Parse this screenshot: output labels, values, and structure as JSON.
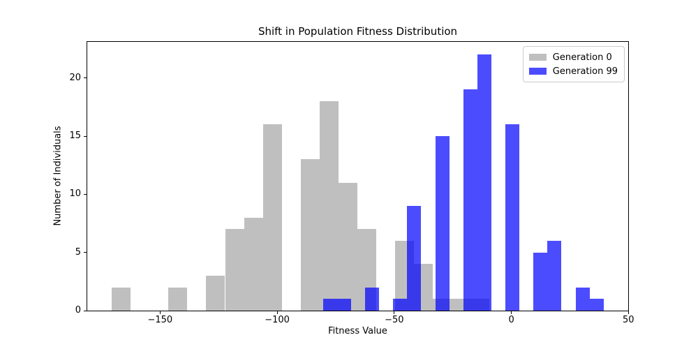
{
  "chart_data": {
    "type": "bar",
    "subtype": "overlaid-histogram",
    "title": "Shift in Population Fitness Distribution",
    "xlabel": "Fitness Value",
    "ylabel": "Number of Individuals",
    "xlim": [
      -181.1,
      49.9
    ],
    "ylim": [
      0,
      23.1
    ],
    "grid": false,
    "x_ticks": [
      {
        "value": -150,
        "label": "−150"
      },
      {
        "value": -100,
        "label": "−100"
      },
      {
        "value": -50,
        "label": "−50"
      },
      {
        "value": 0,
        "label": "0"
      },
      {
        "value": 50,
        "label": "50"
      }
    ],
    "y_ticks": [
      {
        "value": 0,
        "label": "0"
      },
      {
        "value": 5,
        "label": "5"
      },
      {
        "value": 10,
        "label": "10"
      },
      {
        "value": 15,
        "label": "15"
      },
      {
        "value": 20,
        "label": "20"
      }
    ],
    "legend": {
      "position": "upper-right",
      "entries": [
        {
          "label": "Generation 0",
          "color": "rgba(128,128,128,0.5)"
        },
        {
          "label": "Generation 99",
          "color": "rgba(0,0,255,0.7)"
        }
      ]
    },
    "series": [
      {
        "name": "Generation 0",
        "color": "rgba(128,128,128,0.5)",
        "bin_start": -170.6,
        "bin_width": 8.06,
        "counts": [
          2,
          0,
          0,
          2,
          0,
          3,
          7,
          8,
          16,
          0,
          13,
          18,
          11,
          7,
          0,
          6,
          4,
          1,
          1,
          1
        ]
      },
      {
        "name": "Generation 99",
        "color": "rgba(0,0,255,0.7)",
        "bin_start": -80.4,
        "bin_width": 5.99,
        "counts": [
          1,
          1,
          0,
          2,
          0,
          1,
          9,
          0,
          15,
          0,
          19,
          22,
          0,
          16,
          0,
          5,
          6,
          0,
          2,
          1
        ]
      }
    ],
    "colors": {
      "spine": "#000000",
      "text": "#000000",
      "legend_border": "#cccccc",
      "background": "#ffffff"
    }
  }
}
